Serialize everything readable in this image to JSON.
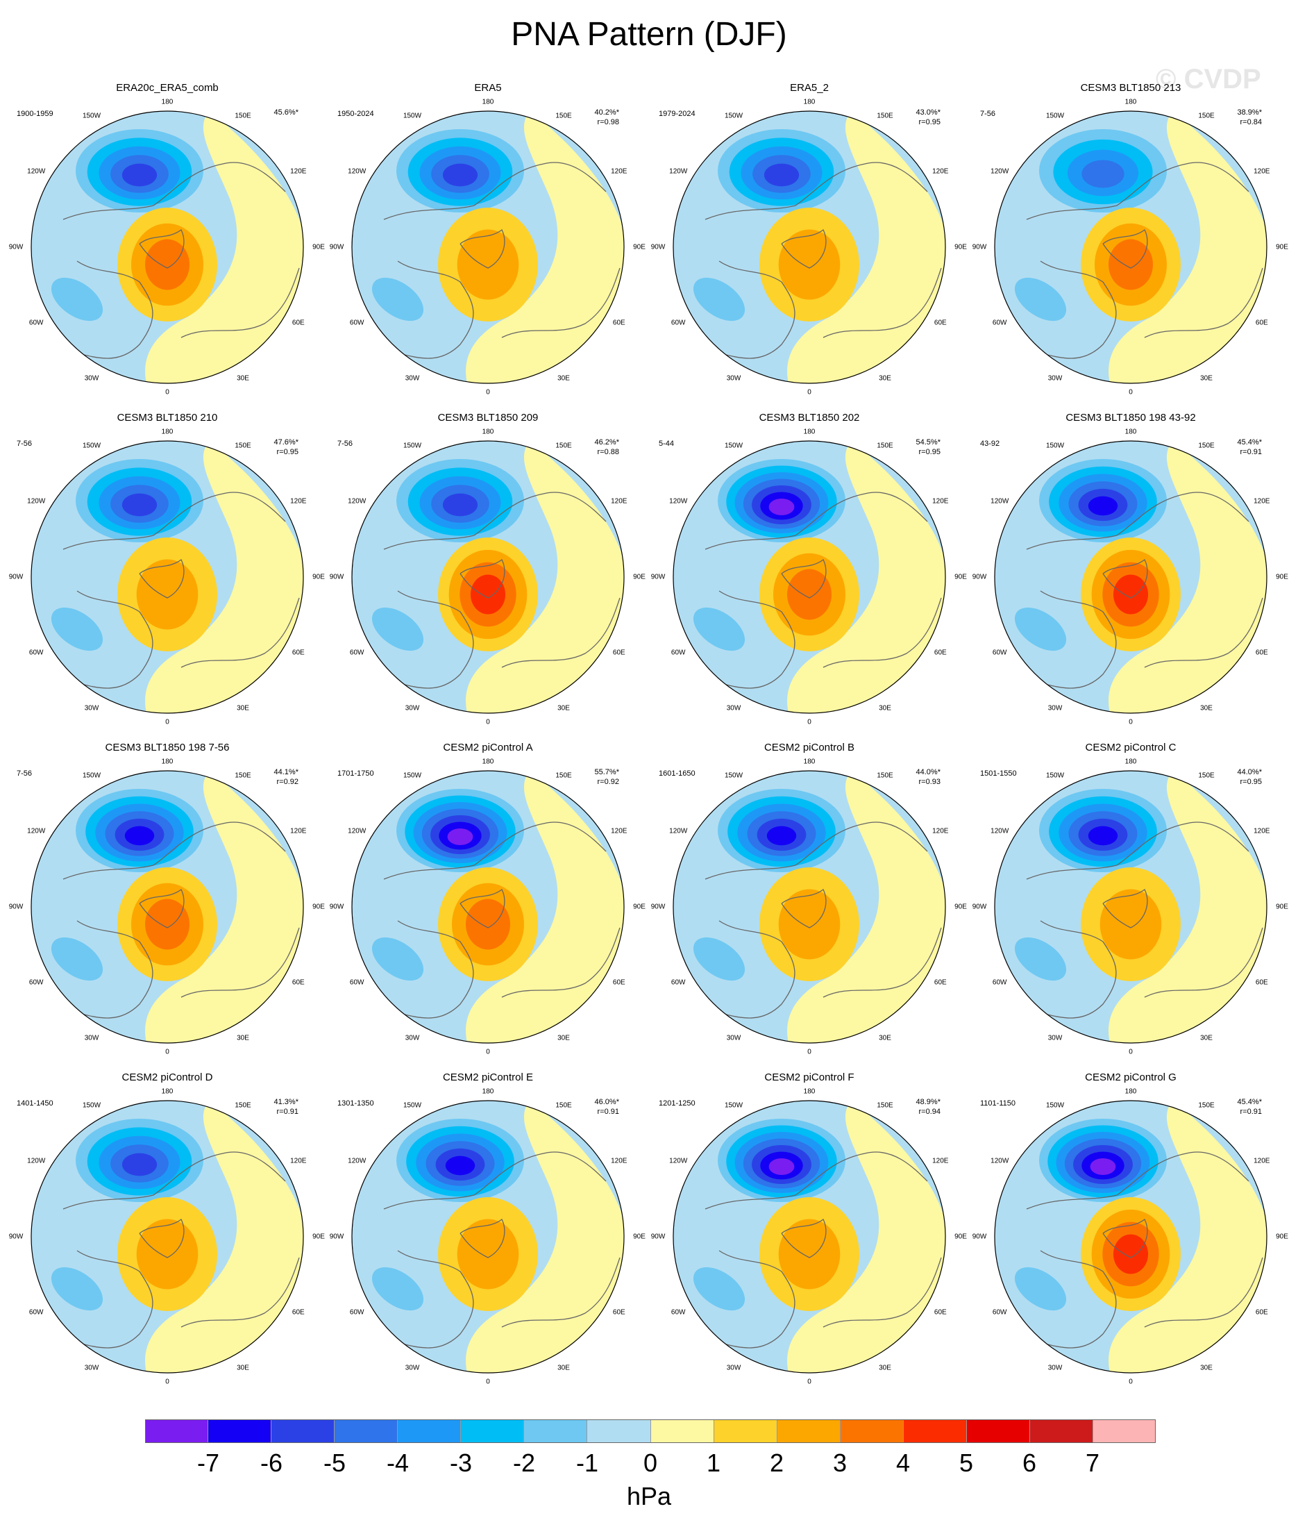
{
  "title": "PNA Pattern (DJF)",
  "watermark": "© CVDP",
  "chart_data": {
    "type": "contour-map-panels",
    "projection": "north-polar-stereographic",
    "variable": "PNA pattern sea-level pressure regression",
    "units": "hPa",
    "longitude_labels": [
      "180",
      "150E",
      "120E",
      "90E",
      "60E",
      "30E",
      "0",
      "30W",
      "60W",
      "90W",
      "120W",
      "150W"
    ],
    "colorbar": {
      "levels": [
        "-7",
        "-6",
        "-5",
        "-4",
        "-3",
        "-2",
        "-1",
        "0",
        "1",
        "2",
        "3",
        "4",
        "5",
        "6",
        "7"
      ],
      "colors": [
        "#7a1df0",
        "#1400f5",
        "#2b41e6",
        "#2f74ea",
        "#1e98f7",
        "#00bdf5",
        "#6ec8f2",
        "#b1ddf2",
        "#fdf8a2",
        "#fdd22a",
        "#fca700",
        "#fc7400",
        "#fb2d00",
        "#e60000",
        "#cd1b1b",
        "#fdb4b4"
      ],
      "units": "hPa"
    },
    "panels": [
      {
        "title": "ERA20c_ERA5_comb",
        "years": "1900-1959",
        "pct": "45.6%*",
        "r": "",
        "low": -5,
        "high": 3
      },
      {
        "title": "ERA5",
        "years": "1950-2024",
        "pct": "40.2%*",
        "r": "r=0.98",
        "low": -5,
        "high": 2
      },
      {
        "title": "ERA5_2",
        "years": "1979-2024",
        "pct": "43.0%*",
        "r": "r=0.95",
        "low": -5,
        "high": 2
      },
      {
        "title": "CESM3 BLT1850 213",
        "years": "7-56",
        "pct": "38.9%*",
        "r": "r=0.84",
        "low": -4,
        "high": 3
      },
      {
        "title": "CESM3 BLT1850 210",
        "years": "7-56",
        "pct": "47.6%*",
        "r": "r=0.95",
        "low": -5,
        "high": 2
      },
      {
        "title": "CESM3 BLT1850 209",
        "years": "7-56",
        "pct": "46.2%*",
        "r": "r=0.88",
        "low": -5,
        "high": 4
      },
      {
        "title": "CESM3 BLT1850 202",
        "years": "5-44",
        "pct": "54.5%*",
        "r": "r=0.95",
        "low": -7,
        "high": 3
      },
      {
        "title": "CESM3 BLT1850 198 43-92",
        "years": "43-92",
        "pct": "45.4%*",
        "r": "r=0.91",
        "low": -6,
        "high": 4
      },
      {
        "title": "CESM3 BLT1850 198 7-56",
        "years": "7-56",
        "pct": "44.1%*",
        "r": "r=0.92",
        "low": -6,
        "high": 3
      },
      {
        "title": "CESM2 piControl A",
        "years": "1701-1750",
        "pct": "55.7%*",
        "r": "r=0.92",
        "low": -7,
        "high": 3
      },
      {
        "title": "CESM2 piControl B",
        "years": "1601-1650",
        "pct": "44.0%*",
        "r": "r=0.93",
        "low": -6,
        "high": 2
      },
      {
        "title": "CESM2 piControl C",
        "years": "1501-1550",
        "pct": "44.0%*",
        "r": "r=0.95",
        "low": -6,
        "high": 2
      },
      {
        "title": "CESM2 piControl D",
        "years": "1401-1450",
        "pct": "41.3%*",
        "r": "r=0.91",
        "low": -5,
        "high": 2
      },
      {
        "title": "CESM2 piControl E",
        "years": "1301-1350",
        "pct": "46.0%*",
        "r": "r=0.91",
        "low": -6,
        "high": 2
      },
      {
        "title": "CESM2 piControl F",
        "years": "1201-1250",
        "pct": "48.9%*",
        "r": "r=0.94",
        "low": -7,
        "high": 2
      },
      {
        "title": "CESM2 piControl G",
        "years": "1101-1150",
        "pct": "45.4%*",
        "r": "r=0.91",
        "low": -7,
        "high": 4
      }
    ]
  }
}
